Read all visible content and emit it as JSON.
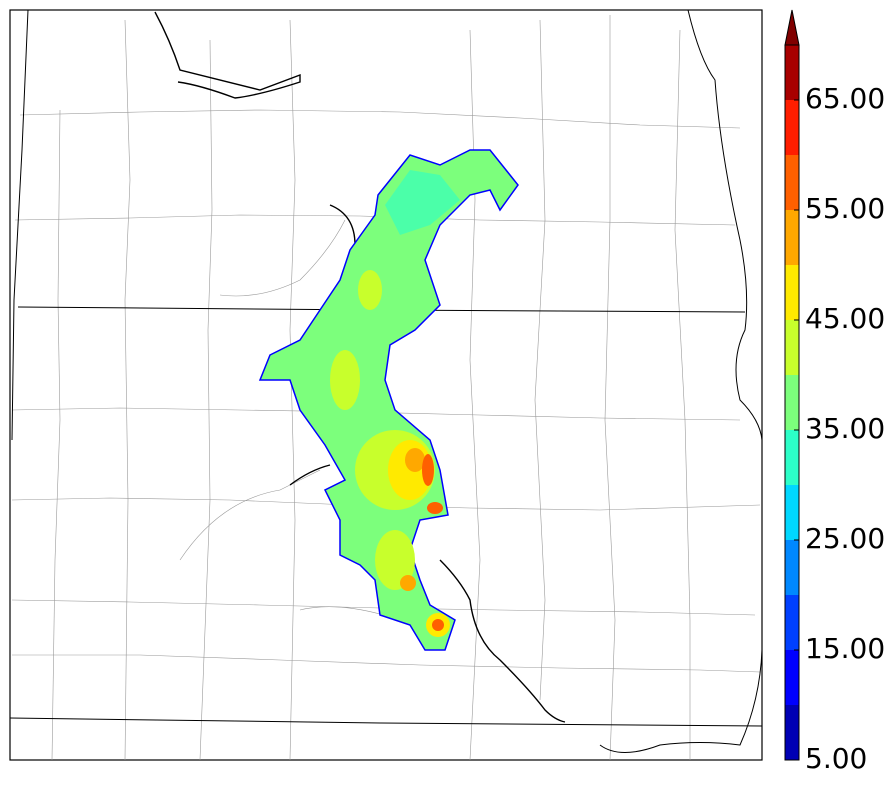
{
  "map": {
    "colorbar": {
      "levels": [
        5,
        10,
        15,
        20,
        25,
        30,
        35,
        40,
        45,
        50,
        55,
        60,
        65,
        70
      ],
      "colors": [
        "#0000b4",
        "#0000ff",
        "#0040ff",
        "#0088ff",
        "#00d8ff",
        "#2cffc8",
        "#7cff7c",
        "#c8ff2c",
        "#ffea00",
        "#ffa800",
        "#ff6000",
        "#ff1e00",
        "#a80000"
      ],
      "extend_color": "#800000",
      "ticks": [
        {
          "value": 5,
          "label": "5.00"
        },
        {
          "value": 15,
          "label": "15.00"
        },
        {
          "value": 25,
          "label": "25.00"
        },
        {
          "value": 35,
          "label": "35.00"
        },
        {
          "value": 45,
          "label": "45.00"
        },
        {
          "value": 55,
          "label": "55.00"
        },
        {
          "value": 65,
          "label": "65.00"
        }
      ]
    }
  }
}
